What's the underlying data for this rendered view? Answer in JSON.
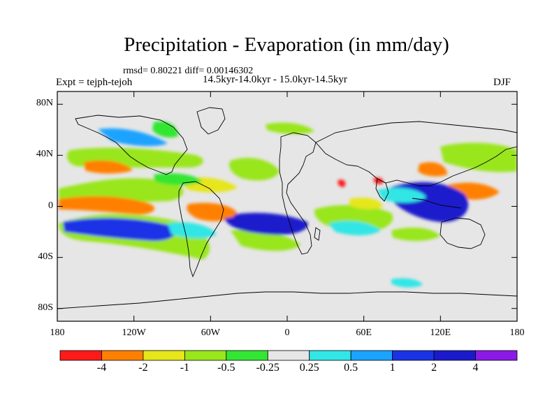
{
  "header": {
    "title": "Precipitation - Evaporation (in mm/day)",
    "stats": "rmsd= 0.80221 diff= 0.00146302",
    "experiment": "Expt = tejph-tejoh",
    "period": "14.5kyr-14.0kyr - 15.0kyr-14.5kyr",
    "season": "DJF"
  },
  "map": {
    "projection": "cylindrical equidistant",
    "lon_range": [
      -180,
      180
    ],
    "lat_range": [
      -90,
      90
    ],
    "background_color": "#e6e6e6",
    "ytick_labels": [
      "80N",
      "40N",
      "0",
      "40S",
      "80S"
    ],
    "ytick_values": [
      80,
      40,
      0,
      -40,
      -80
    ],
    "xtick_labels": [
      "180",
      "120W",
      "60W",
      "0",
      "60E",
      "120E",
      "180"
    ],
    "xtick_values": [
      -180,
      -120,
      -60,
      0,
      60,
      120,
      180
    ]
  },
  "colorbar": {
    "colors": [
      "#ff1a1a",
      "#ff8000",
      "#e6e61a",
      "#99e61a",
      "#33e633",
      "#e6e6e6",
      "#33e6e6",
      "#1aa3ff",
      "#1a33e6",
      "#1a1acc",
      "#8c1ae6"
    ],
    "labels": [
      "-4",
      "-2",
      "-1",
      "-0.5",
      "-0.25",
      "0.25",
      "0.5",
      "1",
      "2",
      "4"
    ]
  }
}
